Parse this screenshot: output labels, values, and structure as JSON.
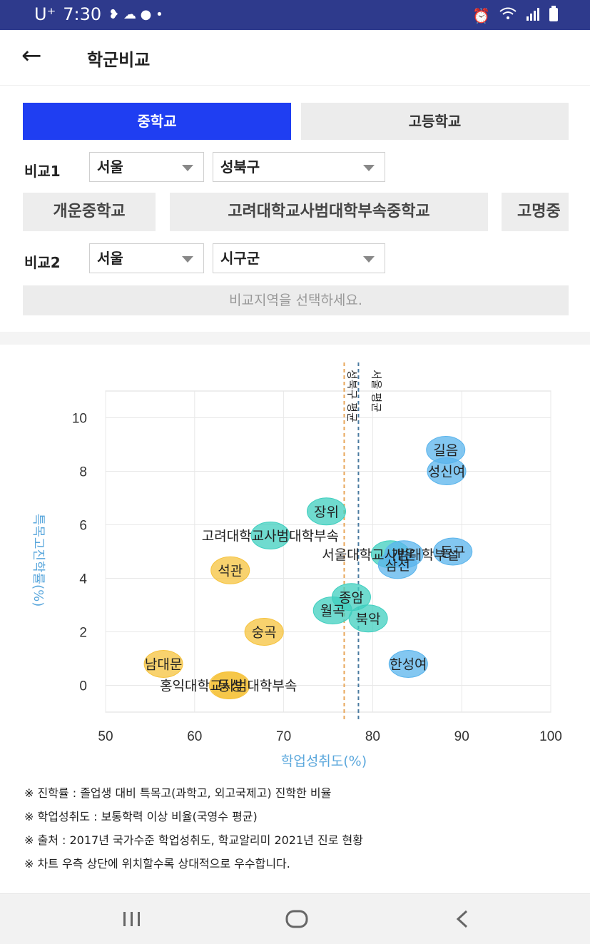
{
  "statusbar": {
    "carrier": "U⁺",
    "time": "7:30"
  },
  "appbar": {
    "back_label": "←",
    "title": "학군비교"
  },
  "tabs": {
    "middle": "중학교",
    "high": "고등학교"
  },
  "compare1": {
    "label": "비교1",
    "city": "서울",
    "district": "성북구"
  },
  "schools": [
    "개운중학교",
    "고려대학교사범대학부속중학교",
    "고명중"
  ],
  "compare2": {
    "label": "비교2",
    "city": "서울",
    "district": "시구군"
  },
  "compare_notice": "비교지역을 선택하세요.",
  "colors": {
    "accent": "#1f3ef2",
    "teal": "#3fcfbf",
    "blue": "#5ab4ec",
    "yellow": "#f6c33e",
    "orange_line": "#e8a65a",
    "blue_line": "#4a7aa0"
  },
  "chart_data": {
    "type": "scatter",
    "xlabel": "학업성취도(%)",
    "ylabel": "특목고진학률(%)",
    "xlim": [
      50,
      100
    ],
    "ylim": [
      -1,
      11
    ],
    "xticks": [
      50,
      60,
      70,
      80,
      90,
      100
    ],
    "yticks": [
      0,
      2,
      4,
      6,
      8,
      10
    ],
    "grid": true,
    "reference_lines": [
      {
        "label": "성북구 평균",
        "x": 76.8,
        "color": "orange"
      },
      {
        "label": "서울 평균",
        "x": 78.4,
        "color": "blue"
      }
    ],
    "points": [
      {
        "label": "길음",
        "x": 88.2,
        "y": 8.8,
        "color": "blue"
      },
      {
        "label": "성신여",
        "x": 88.3,
        "y": 8.0,
        "color": "blue"
      },
      {
        "label": "장위",
        "x": 74.8,
        "y": 6.5,
        "color": "teal"
      },
      {
        "label": "고려대학교사범대학부속",
        "x": 68.5,
        "y": 5.6,
        "color": "teal"
      },
      {
        "label": "서울대학교사범대학부설",
        "x": 82.0,
        "y": 4.9,
        "color": "teal"
      },
      {
        "label": "개운",
        "x": 83.5,
        "y": 4.9,
        "color": "blue"
      },
      {
        "label": "삼선",
        "x": 82.8,
        "y": 4.5,
        "color": "blue"
      },
      {
        "label": "동구",
        "x": 89.0,
        "y": 5.0,
        "color": "blue"
      },
      {
        "label": "석관",
        "x": 64.0,
        "y": 4.3,
        "color": "yellow"
      },
      {
        "label": "종암",
        "x": 77.6,
        "y": 3.3,
        "color": "teal"
      },
      {
        "label": "월곡",
        "x": 75.5,
        "y": 2.8,
        "color": "teal"
      },
      {
        "label": "북악",
        "x": 79.5,
        "y": 2.5,
        "color": "teal"
      },
      {
        "label": "숭곡",
        "x": 67.8,
        "y": 2.0,
        "color": "yellow"
      },
      {
        "label": "한성여",
        "x": 84.0,
        "y": 0.8,
        "color": "blue"
      },
      {
        "label": "남대문",
        "x": 56.5,
        "y": 0.8,
        "color": "yellow"
      },
      {
        "label": "홍익대학교사범대학부속",
        "x": 63.8,
        "y": 0.0,
        "color": "yellow"
      },
      {
        "label": "동성",
        "x": 64.0,
        "y": 0.0,
        "color": "yellow"
      }
    ]
  },
  "notes": [
    "※ 진학률 : 졸업생 대비 특목고(과학고, 외고국제고) 진학한 비율",
    "※ 학업성취도 : 보통학력 이상 비율(국영수 평균)",
    "※ 출처 : 2017년 국가수준 학업성취도, 학교알리미 2021년 진로 현황",
    "※ 차트 우측 상단에 위치할수록 상대적으로 우수합니다."
  ]
}
